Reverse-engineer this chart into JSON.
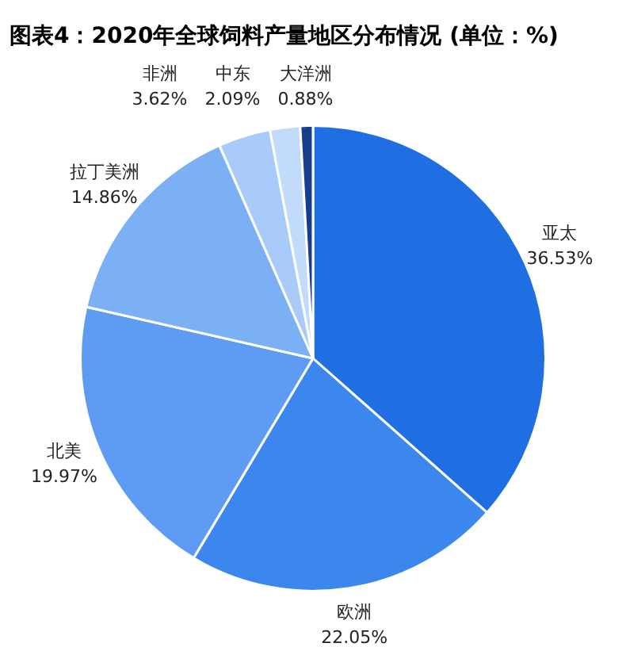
{
  "chart_data": {
    "type": "pie",
    "title": "图表4：2020年全球饲料产量地区分布情况 (单位：%)",
    "categories": [
      "亚太",
      "欧洲",
      "北美",
      "拉丁美洲",
      "非洲",
      "中东",
      "大洋洲"
    ],
    "values": [
      36.53,
      22.05,
      19.97,
      14.86,
      3.62,
      2.09,
      0.88
    ],
    "colors": [
      "#1f6fe3",
      "#3c87ee",
      "#5d9cf2",
      "#7bb0f5",
      "#a9cbf9",
      "#c3dbfb",
      "#173d8c"
    ],
    "value_labels": [
      "36.53%",
      "22.05%",
      "19.97%",
      "14.86%",
      "3.62%",
      "2.09%",
      "0.88%"
    ],
    "legend": false
  }
}
